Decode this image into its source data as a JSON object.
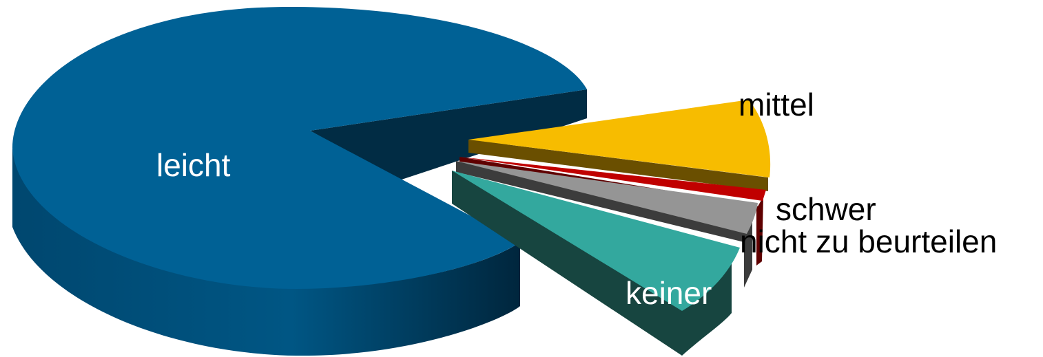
{
  "chart_data": {
    "type": "pie",
    "style": "3d-exploded",
    "title": "",
    "categories": [
      "leicht",
      "keiner",
      "nicht zu beurteilen",
      "schwer",
      "mittel"
    ],
    "values": [
      75.9,
      11.4,
      4.4,
      0.9,
      7.4
    ],
    "colors": {
      "leicht": "#006195",
      "keiner": "#33a89e",
      "nicht zu beurteilen": "#959595",
      "schwer": "#c00000",
      "mittel": "#f7bc00"
    },
    "legend": "none",
    "labels_position": "on-slice / adjacent"
  }
}
